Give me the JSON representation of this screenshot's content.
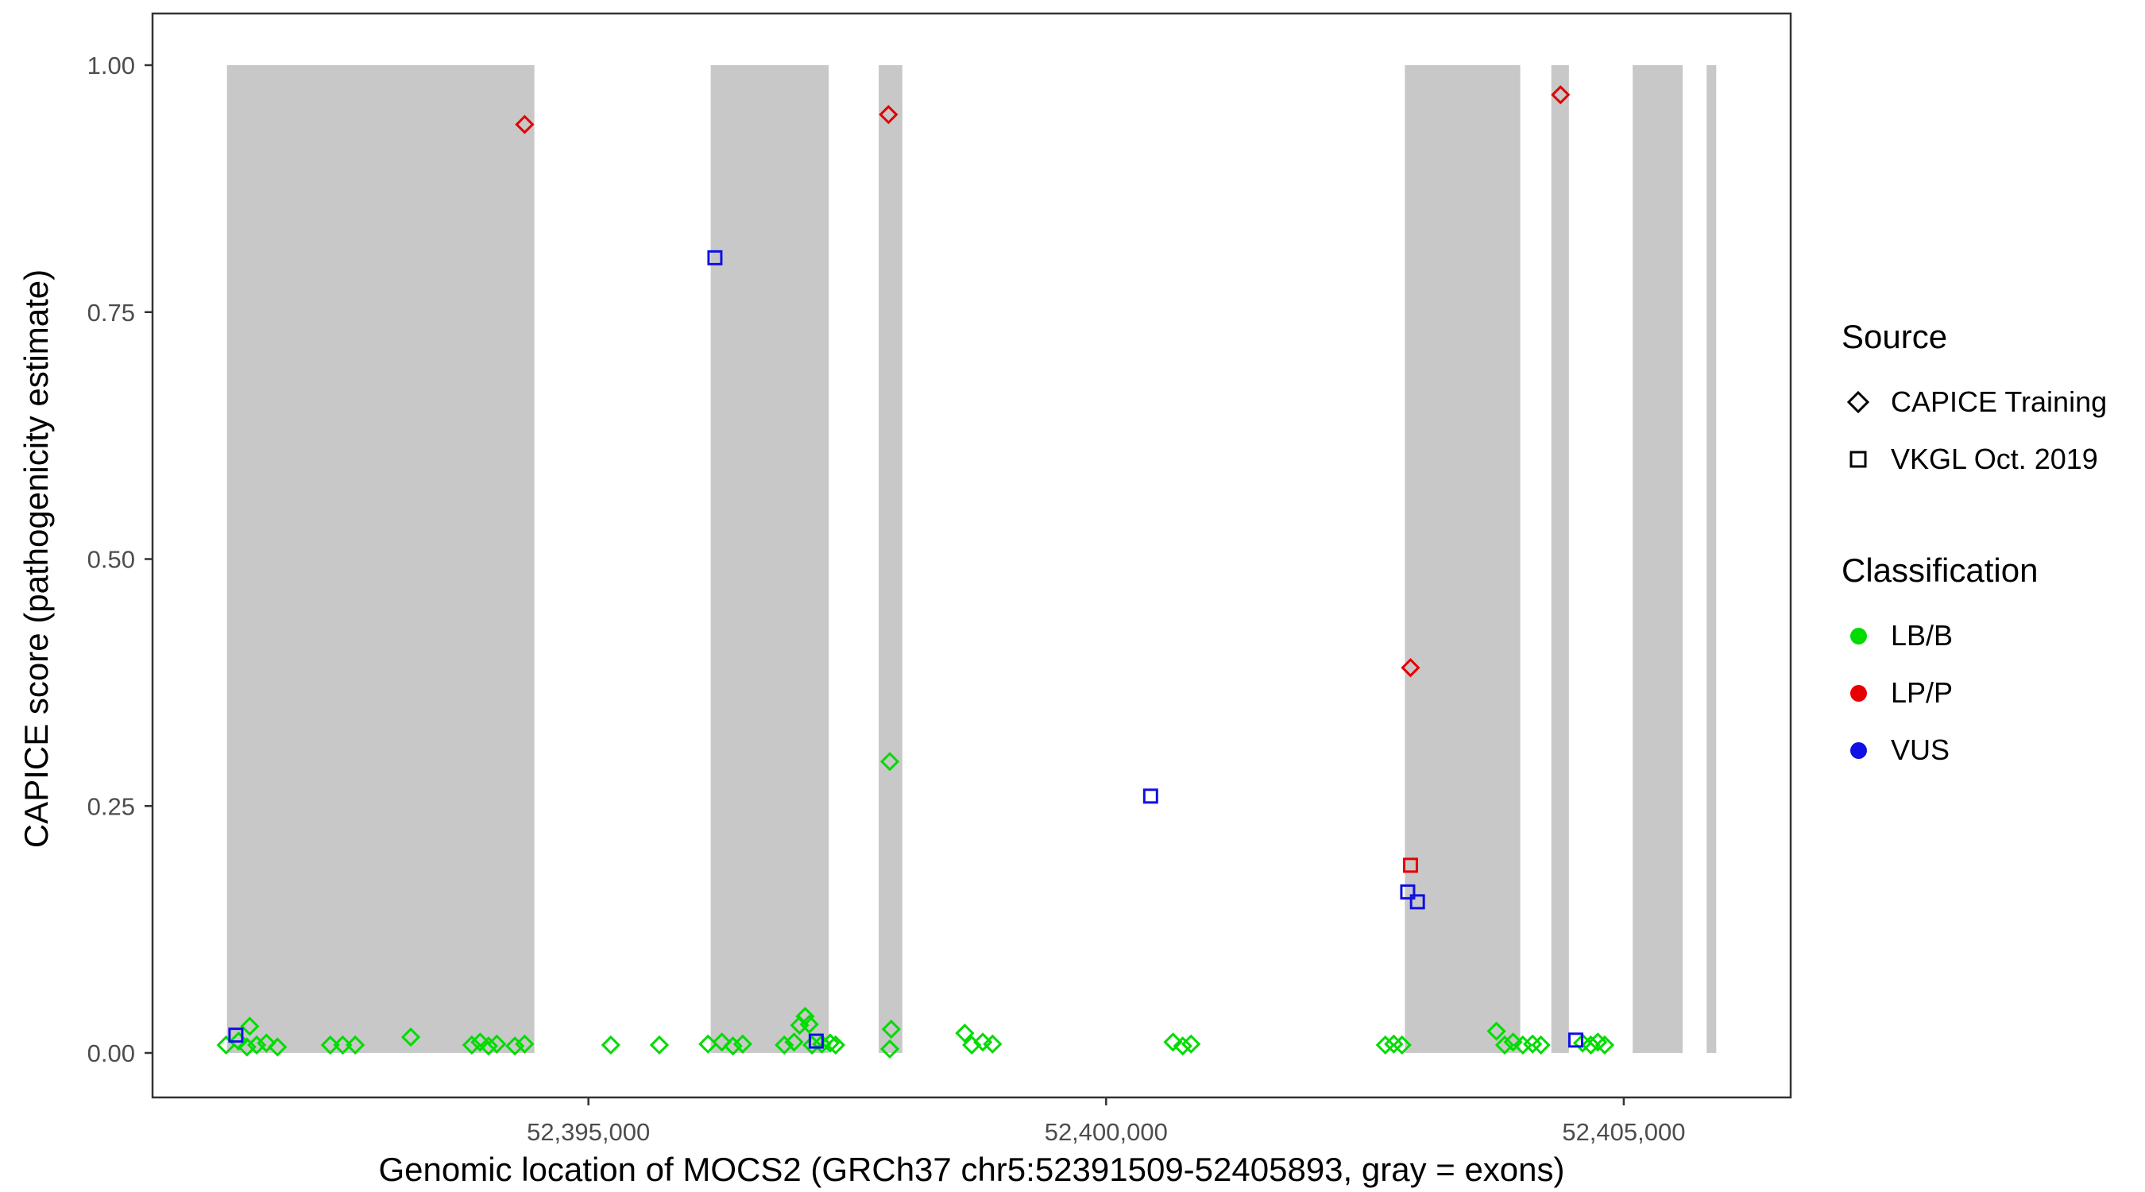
{
  "legend": {
    "source": {
      "title": "Source",
      "items": [
        {
          "label": "CAPICE Training",
          "shape": "diamond"
        },
        {
          "label": "VKGL Oct. 2019",
          "shape": "square"
        }
      ]
    },
    "classification": {
      "title": "Classification",
      "items": [
        {
          "label": "LB/B",
          "color": "#00DC00"
        },
        {
          "label": "LP/P",
          "color": "#E60000"
        },
        {
          "label": "VUS",
          "color": "#1010E6"
        }
      ]
    }
  },
  "chart_data": {
    "type": "scatter",
    "title": "",
    "xlabel": "Genomic location of MOCS2 (GRCh37 chr5:52391509-52405893, gray = exons)",
    "ylabel": "CAPICE score (pathogenicity estimate)",
    "xlim": [
      52390790,
      52406612
    ],
    "ylim": [
      0,
      1
    ],
    "grid": false,
    "legend_position": "right",
    "x_ticks": [
      {
        "value": 52395000,
        "label": "52,395,000"
      },
      {
        "value": 52400000,
        "label": "52,400,000"
      },
      {
        "value": 52405000,
        "label": "52,405,000"
      }
    ],
    "y_ticks": [
      {
        "value": 0.0,
        "label": "0.00"
      },
      {
        "value": 0.25,
        "label": "0.25"
      },
      {
        "value": 0.5,
        "label": "0.50"
      },
      {
        "value": 0.75,
        "label": "0.75"
      },
      {
        "value": 1.0,
        "label": "1.00"
      }
    ],
    "exon_color": "#C8C8C8",
    "exons": [
      [
        52391509,
        52394478
      ],
      [
        52396181,
        52397321
      ],
      [
        52397804,
        52398032
      ],
      [
        52402886,
        52404000
      ],
      [
        52404300,
        52404470
      ],
      [
        52405086,
        52405569
      ],
      [
        52405800,
        52405893
      ]
    ],
    "colors": {
      "LB/B": "#00DC00",
      "LP/P": "#E60000",
      "VUS": "#1010E6"
    },
    "shapes": {
      "CAPICE Training": "diamond",
      "VKGL Oct. 2019": "square"
    },
    "series": [
      {
        "source": "CAPICE Training",
        "classification": "LB/B",
        "points": [
          [
            52391501,
            0.008
          ],
          [
            52391621,
            0.012
          ],
          [
            52391702,
            0.006
          ],
          [
            52391729,
            0.027
          ],
          [
            52391796,
            0.008
          ],
          [
            52391890,
            0.01
          ],
          [
            52391997,
            0.006
          ],
          [
            52392507,
            0.008
          ],
          [
            52392627,
            0.008
          ],
          [
            52392748,
            0.008
          ],
          [
            52393284,
            0.016
          ],
          [
            52393874,
            0.008
          ],
          [
            52393954,
            0.011
          ],
          [
            52394035,
            0.007
          ],
          [
            52394115,
            0.009
          ],
          [
            52394290,
            0.007
          ],
          [
            52394384,
            0.009
          ],
          [
            52395216,
            0.008
          ],
          [
            52395685,
            0.008
          ],
          [
            52396155,
            0.009
          ],
          [
            52396289,
            0.011
          ],
          [
            52396396,
            0.007
          ],
          [
            52396490,
            0.009
          ],
          [
            52396892,
            0.008
          ],
          [
            52396986,
            0.011
          ],
          [
            52397040,
            0.028
          ],
          [
            52397093,
            0.037
          ],
          [
            52397133,
            0.029
          ],
          [
            52397160,
            0.008
          ],
          [
            52397254,
            0.009
          ],
          [
            52397335,
            0.01
          ],
          [
            52397388,
            0.008
          ],
          [
            52397911,
            0.295
          ],
          [
            52397925,
            0.024
          ],
          [
            52397911,
            0.004
          ],
          [
            52398635,
            0.02
          ],
          [
            52398702,
            0.008
          ],
          [
            52398809,
            0.011
          ],
          [
            52398903,
            0.009
          ],
          [
            52400646,
            0.011
          ],
          [
            52400740,
            0.007
          ],
          [
            52400820,
            0.009
          ],
          [
            52402697,
            0.008
          ],
          [
            52402778,
            0.009
          ],
          [
            52402858,
            0.008
          ],
          [
            52403770,
            0.022
          ],
          [
            52403850,
            0.008
          ],
          [
            52403931,
            0.011
          ],
          [
            52404025,
            0.008
          ],
          [
            52404119,
            0.009
          ],
          [
            52404199,
            0.008
          ],
          [
            52404602,
            0.01
          ],
          [
            52404682,
            0.008
          ],
          [
            52404749,
            0.011
          ],
          [
            52404816,
            0.008
          ]
        ]
      },
      {
        "source": "CAPICE Training",
        "classification": "LP/P",
        "points": [
          [
            52394384,
            0.94
          ],
          [
            52397898,
            0.95
          ],
          [
            52402940,
            0.39
          ],
          [
            52404389,
            0.97
          ]
        ]
      },
      {
        "source": "VKGL Oct. 2019",
        "classification": "VUS",
        "points": [
          [
            52391595,
            0.018
          ],
          [
            52396222,
            0.805
          ],
          [
            52397200,
            0.012
          ],
          [
            52400430,
            0.26
          ],
          [
            52402913,
            0.163
          ],
          [
            52403007,
            0.153
          ],
          [
            52404536,
            0.013
          ]
        ]
      },
      {
        "source": "VKGL Oct. 2019",
        "classification": "LP/P",
        "points": [
          [
            52402940,
            0.19
          ]
        ]
      }
    ]
  }
}
